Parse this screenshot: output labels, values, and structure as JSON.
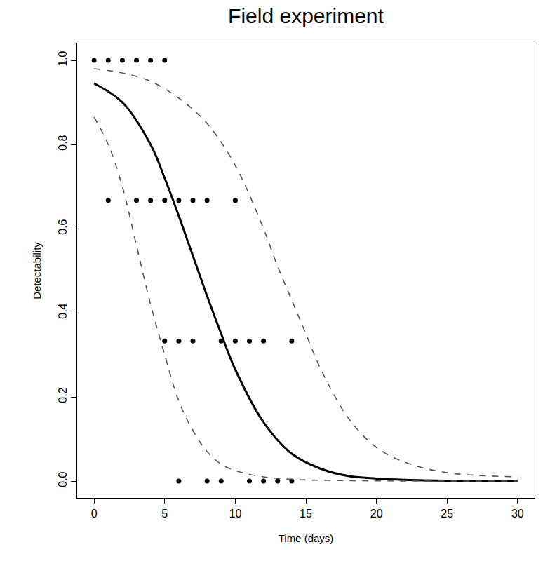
{
  "chart_data": {
    "type": "scatter",
    "title": "Field experiment",
    "x_label": "Time (days)",
    "y_label": "Detectability",
    "xlim": [
      -1.2,
      31.2
    ],
    "ylim": [
      -0.04,
      1.04
    ],
    "xticks": [
      0,
      5,
      10,
      15,
      20,
      25,
      30
    ],
    "yticks": [
      {
        "value": 0,
        "label": "0.0"
      },
      {
        "value": 0.2,
        "label": "0.2"
      },
      {
        "value": 0.4,
        "label": "0.4"
      },
      {
        "value": 0.6,
        "label": "0.6"
      },
      {
        "value": 0.8,
        "label": "0.8"
      },
      {
        "value": 1,
        "label": "1.0"
      }
    ],
    "grid": false,
    "series": [
      {
        "type": "scatter",
        "marker": "circle",
        "color": "#000000",
        "x": [
          0,
          1,
          2,
          3,
          4,
          5,
          1,
          3,
          4,
          5,
          6,
          7,
          8,
          10,
          5,
          6,
          7,
          9,
          10,
          11,
          12,
          14,
          6,
          8,
          9,
          11,
          12,
          13,
          14
        ],
        "values": [
          1,
          1,
          1,
          1,
          1,
          1,
          0.667,
          0.667,
          0.667,
          0.667,
          0.667,
          0.667,
          0.667,
          0.667,
          0.333,
          0.333,
          0.333,
          0.333,
          0.333,
          0.333,
          0.333,
          0.333,
          0,
          0,
          0,
          0,
          0,
          0,
          0
        ]
      },
      {
        "type": "line",
        "line_style": "solid",
        "color": "#000000",
        "x": [
          0,
          2,
          4,
          5,
          6,
          7,
          8,
          9,
          10,
          12,
          14,
          16,
          18,
          20,
          22,
          25,
          30
        ],
        "values": [
          0.945,
          0.9,
          0.8,
          0.72,
          0.63,
          0.535,
          0.44,
          0.35,
          0.265,
          0.14,
          0.065,
          0.03,
          0.012,
          0.006,
          0.003,
          0.001,
          0
        ]
      },
      {
        "type": "line",
        "line_style": "dashed",
        "color": "#555555",
        "x": [
          0,
          2,
          4,
          6,
          8,
          10,
          12,
          13,
          14,
          15,
          16,
          18,
          20,
          22,
          25,
          30
        ],
        "values": [
          0.98,
          0.97,
          0.95,
          0.91,
          0.85,
          0.75,
          0.6,
          0.51,
          0.43,
          0.35,
          0.27,
          0.15,
          0.08,
          0.045,
          0.02,
          0.01
        ]
      },
      {
        "type": "line",
        "line_style": "dashed",
        "color": "#555555",
        "x": [
          0,
          1,
          2,
          3,
          4,
          5,
          6,
          7,
          8,
          9,
          10,
          12,
          14,
          16,
          20,
          30
        ],
        "values": [
          0.865,
          0.8,
          0.7,
          0.56,
          0.42,
          0.3,
          0.19,
          0.12,
          0.07,
          0.04,
          0.025,
          0.01,
          0.004,
          0.002,
          0.0005,
          0
        ]
      }
    ]
  }
}
